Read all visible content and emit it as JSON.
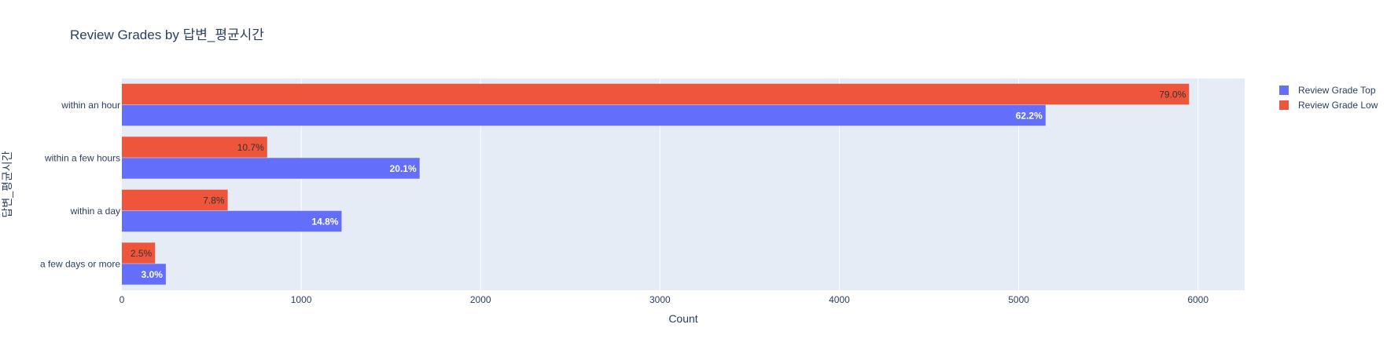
{
  "chart_data": {
    "type": "bar",
    "orientation": "horizontal",
    "title": "Review Grades by 답변_평균시간",
    "xlabel": "Count",
    "ylabel": "답변_평균시간",
    "categories": [
      "within an hour",
      "within a few hours",
      "within a day",
      "a few days or more"
    ],
    "series": [
      {
        "name": "Review Grade Top",
        "color": "#636efa",
        "values": [
          5150,
          1660,
          1225,
          245
        ],
        "labels": [
          "62.2%",
          "20.1%",
          "14.8%",
          "3.0%"
        ]
      },
      {
        "name": "Review Grade Low",
        "color": "#ef553b",
        "values": [
          5950,
          810,
          590,
          185
        ],
        "labels": [
          "79.0%",
          "10.7%",
          "7.8%",
          "2.5%"
        ]
      }
    ],
    "xlim": [
      0,
      6260
    ],
    "xticks": [
      0,
      1000,
      2000,
      3000,
      4000,
      5000,
      6000
    ],
    "xtick_labels": [
      "0",
      "1000",
      "2000",
      "3000",
      "4000",
      "5000",
      "6000"
    ],
    "grid": true,
    "legend_position": "top-right",
    "plot_bg": "#e5ecf6",
    "text_color": "#2a3f5f"
  }
}
